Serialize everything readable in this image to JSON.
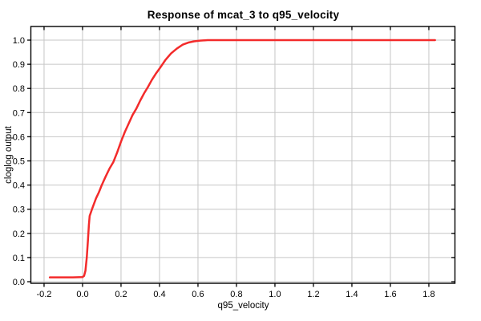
{
  "chart_data": {
    "type": "line",
    "title": "Response of mcat_3 to q95_velocity",
    "xlabel": "q95_velocity",
    "ylabel": "cloglog output",
    "xlim": [
      -0.2686,
      1.9356
    ],
    "ylim": [
      -0.0066,
      1.0565
    ],
    "grid": true,
    "legend": "none",
    "x_ticks": [
      {
        "v": -0.2,
        "label": "-0.2"
      },
      {
        "v": 0.0,
        "label": "0.0"
      },
      {
        "v": 0.2,
        "label": "0.2"
      },
      {
        "v": 0.4,
        "label": "0.4"
      },
      {
        "v": 0.6,
        "label": "0.6"
      },
      {
        "v": 0.8,
        "label": "0.8"
      },
      {
        "v": 1.0,
        "label": "1.0"
      },
      {
        "v": 1.2,
        "label": "1.2"
      },
      {
        "v": 1.4,
        "label": "1.4"
      },
      {
        "v": 1.6,
        "label": "1.6"
      },
      {
        "v": 1.8,
        "label": "1.8"
      }
    ],
    "y_ticks": [
      {
        "v": 0.0,
        "label": "0.0"
      },
      {
        "v": 0.1,
        "label": "0.1"
      },
      {
        "v": 0.2,
        "label": "0.2"
      },
      {
        "v": 0.3,
        "label": "0.3"
      },
      {
        "v": 0.4,
        "label": "0.4"
      },
      {
        "v": 0.5,
        "label": "0.5"
      },
      {
        "v": 0.6,
        "label": "0.6"
      },
      {
        "v": 0.7,
        "label": "0.7"
      },
      {
        "v": 0.8,
        "label": "0.8"
      },
      {
        "v": 0.9,
        "label": "0.9"
      },
      {
        "v": 1.0,
        "label": "1.0"
      }
    ],
    "series": [
      {
        "name": "response of mcat_3",
        "color": "#f32b2b",
        "points": [
          [
            -0.17,
            0.018
          ],
          [
            -0.1,
            0.018
          ],
          [
            -0.05,
            0.018
          ],
          [
            0.0,
            0.019
          ],
          [
            0.008,
            0.024
          ],
          [
            0.015,
            0.045
          ],
          [
            0.022,
            0.1
          ],
          [
            0.028,
            0.17
          ],
          [
            0.033,
            0.235
          ],
          [
            0.037,
            0.272
          ],
          [
            0.05,
            0.302
          ],
          [
            0.07,
            0.345
          ],
          [
            0.085,
            0.37
          ],
          [
            0.1,
            0.4
          ],
          [
            0.12,
            0.435
          ],
          [
            0.14,
            0.468
          ],
          [
            0.16,
            0.495
          ],
          [
            0.18,
            0.535
          ],
          [
            0.2,
            0.58
          ],
          [
            0.22,
            0.62
          ],
          [
            0.24,
            0.655
          ],
          [
            0.26,
            0.69
          ],
          [
            0.28,
            0.717
          ],
          [
            0.3,
            0.75
          ],
          [
            0.32,
            0.78
          ],
          [
            0.34,
            0.806
          ],
          [
            0.36,
            0.835
          ],
          [
            0.38,
            0.86
          ],
          [
            0.4,
            0.882
          ],
          [
            0.43,
            0.917
          ],
          [
            0.46,
            0.945
          ],
          [
            0.49,
            0.965
          ],
          [
            0.52,
            0.981
          ],
          [
            0.55,
            0.99
          ],
          [
            0.58,
            0.995
          ],
          [
            0.61,
            0.998
          ],
          [
            0.65,
            1.0
          ],
          [
            0.75,
            1.0
          ],
          [
            1.0,
            1.0
          ],
          [
            1.25,
            1.0
          ],
          [
            1.5,
            1.0
          ],
          [
            1.832,
            1.0
          ]
        ]
      }
    ],
    "colors": {
      "curve": "#f32b2b",
      "grid": "#c6c6c6",
      "frame": "#000000",
      "text": "#000000",
      "background": "#ffffff"
    }
  }
}
